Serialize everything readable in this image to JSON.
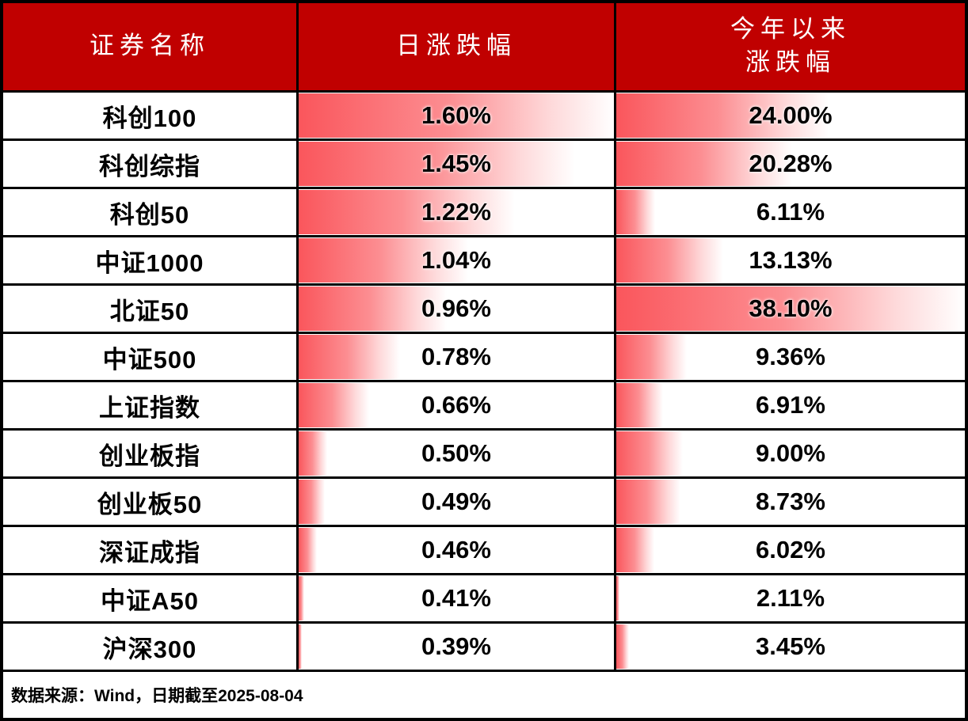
{
  "colors": {
    "header_bg": "#C00000",
    "header_text": "#FFFFFF",
    "bar_color": "#FA565C",
    "bar_fade_to": "#FFFFFF",
    "grid_border": "#000000",
    "value_text": "#000000"
  },
  "table": {
    "header": {
      "name_label": "证券名称",
      "daily_label": "日涨跌幅",
      "ytd_label": "今年以来\n涨跌幅"
    },
    "rows": [
      {
        "name": "科创100",
        "daily_label": "1.60%",
        "daily_value": 1.6,
        "ytd_label": "24.00%",
        "ytd_value": 24.0
      },
      {
        "name": "科创综指",
        "daily_label": "1.45%",
        "daily_value": 1.45,
        "ytd_label": "20.28%",
        "ytd_value": 20.28
      },
      {
        "name": "科创50",
        "daily_label": "1.22%",
        "daily_value": 1.22,
        "ytd_label": "6.11%",
        "ytd_value": 6.11
      },
      {
        "name": "中证1000",
        "daily_label": "1.04%",
        "daily_value": 1.04,
        "ytd_label": "13.13%",
        "ytd_value": 13.13
      },
      {
        "name": "北证50",
        "daily_label": "0.96%",
        "daily_value": 0.96,
        "ytd_label": "38.10%",
        "ytd_value": 38.1
      },
      {
        "name": "中证500",
        "daily_label": "0.78%",
        "daily_value": 0.78,
        "ytd_label": "9.36%",
        "ytd_value": 9.36
      },
      {
        "name": "上证指数",
        "daily_label": "0.66%",
        "daily_value": 0.66,
        "ytd_label": "6.91%",
        "ytd_value": 6.91
      },
      {
        "name": "创业板指",
        "daily_label": "0.50%",
        "daily_value": 0.5,
        "ytd_label": "9.00%",
        "ytd_value": 9.0
      },
      {
        "name": "创业板50",
        "daily_label": "0.49%",
        "daily_value": 0.49,
        "ytd_label": "8.73%",
        "ytd_value": 8.73
      },
      {
        "name": "深证成指",
        "daily_label": "0.46%",
        "daily_value": 0.46,
        "ytd_label": "6.02%",
        "ytd_value": 6.02
      },
      {
        "name": "中证A50",
        "daily_label": "0.41%",
        "daily_value": 0.41,
        "ytd_label": "2.11%",
        "ytd_value": 2.11
      },
      {
        "name": "沪深300",
        "daily_label": "0.39%",
        "daily_value": 0.39,
        "ytd_label": "3.45%",
        "ytd_value": 3.45
      }
    ],
    "footer_note": "数据来源：Wind，日期截至2025-08-04"
  },
  "chart_data": {
    "type": "table",
    "title": "",
    "columns": [
      "证券名称",
      "日涨跌幅",
      "今年以来涨跌幅"
    ],
    "categories": [
      "科创100",
      "科创综指",
      "科创50",
      "中证1000",
      "北证50",
      "中证500",
      "上证指数",
      "创业板指",
      "创业板50",
      "深证成指",
      "中证A50",
      "沪深300"
    ],
    "series": [
      {
        "name": "日涨跌幅",
        "values": [
          1.6,
          1.45,
          1.22,
          1.04,
          0.96,
          0.78,
          0.66,
          0.5,
          0.49,
          0.46,
          0.41,
          0.39
        ],
        "unit": "%"
      },
      {
        "name": "今年以来涨跌幅",
        "values": [
          24.0,
          20.28,
          6.11,
          13.13,
          38.1,
          9.36,
          6.91,
          9.0,
          8.73,
          6.02,
          2.11,
          3.45
        ],
        "unit": "%"
      }
    ],
    "scales": {
      "daily": {
        "min": 0.39,
        "max": 1.6
      },
      "ytd": {
        "min": 2.11,
        "max": 38.1
      }
    },
    "bar_style": "gradient data bars, red (#FA565C) fading to white, length = (value-min)/(max-min)",
    "source_note": "数据来源：Wind，日期截至2025-08-04"
  }
}
